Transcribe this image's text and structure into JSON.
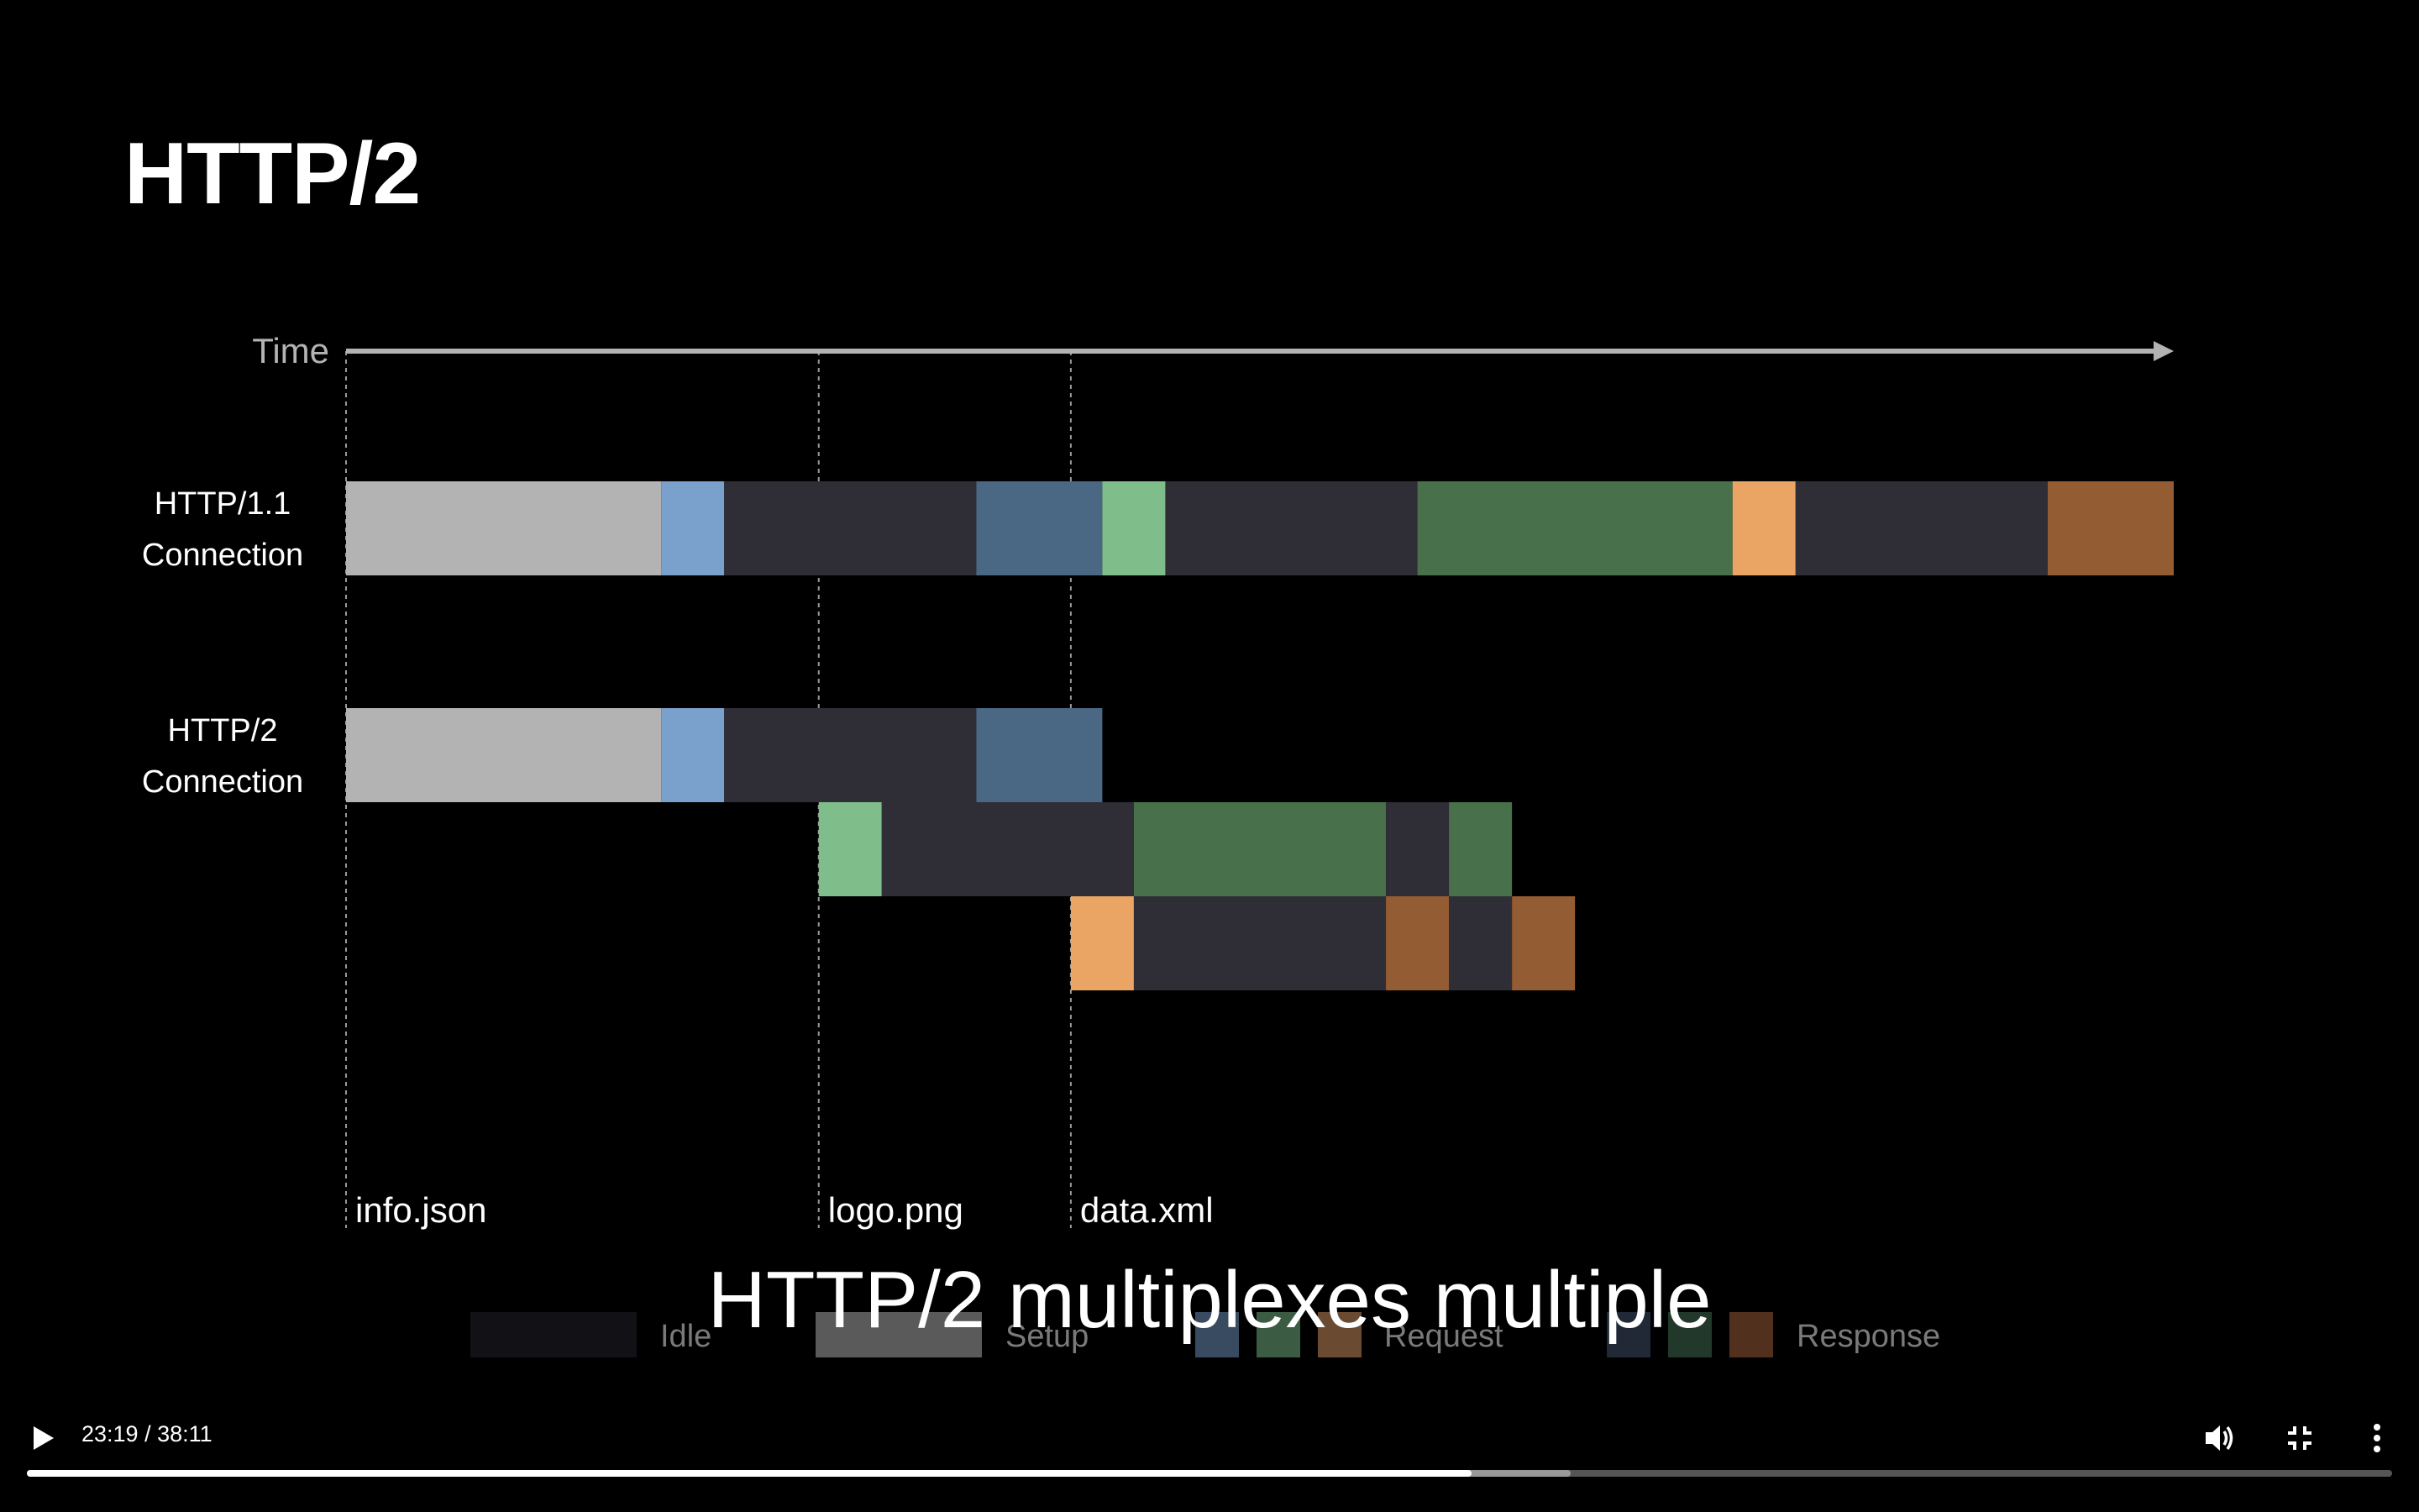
{
  "slide": {
    "title": "HTTP/2",
    "time_label": "Time",
    "rows": [
      {
        "label_line1": "HTTP/1.1",
        "label_line2": "Connection"
      },
      {
        "label_line1": "HTTP/2",
        "label_line2": "Connection"
      }
    ],
    "markers": [
      {
        "name": "info.json",
        "time": 0
      },
      {
        "name": "logo.png",
        "time": 7.5
      },
      {
        "name": "data.xml",
        "time": 11.5
      }
    ],
    "time_axis_max": 29,
    "segments": {
      "http11": [
        {
          "start": 0,
          "end": 5,
          "kind": "setup"
        },
        {
          "start": 5,
          "end": 6,
          "kind": "request-blue"
        },
        {
          "start": 6,
          "end": 10,
          "kind": "idle"
        },
        {
          "start": 10,
          "end": 12,
          "kind": "response-blue"
        },
        {
          "start": 12,
          "end": 13,
          "kind": "request-green"
        },
        {
          "start": 13,
          "end": 17,
          "kind": "idle"
        },
        {
          "start": 17,
          "end": 22,
          "kind": "response-green"
        },
        {
          "start": 22,
          "end": 23,
          "kind": "request-orange"
        },
        {
          "start": 23,
          "end": 27,
          "kind": "idle"
        },
        {
          "start": 27,
          "end": 29,
          "kind": "response-orange"
        }
      ],
      "http2_stream1": [
        {
          "start": 0,
          "end": 5,
          "kind": "setup"
        },
        {
          "start": 5,
          "end": 6,
          "kind": "request-blue"
        },
        {
          "start": 6,
          "end": 10,
          "kind": "idle"
        },
        {
          "start": 10,
          "end": 12,
          "kind": "response-blue"
        }
      ],
      "http2_stream2": [
        {
          "start": 7.5,
          "end": 8.5,
          "kind": "request-green"
        },
        {
          "start": 8.5,
          "end": 12.5,
          "kind": "idle"
        },
        {
          "start": 12.5,
          "end": 16.5,
          "kind": "response-green"
        },
        {
          "start": 16.5,
          "end": 17.5,
          "kind": "idle"
        },
        {
          "start": 17.5,
          "end": 18.5,
          "kind": "response-green"
        }
      ],
      "http2_stream3": [
        {
          "start": 11.5,
          "end": 12.5,
          "kind": "request-orange"
        },
        {
          "start": 12.5,
          "end": 16.5,
          "kind": "idle"
        },
        {
          "start": 16.5,
          "end": 17.5,
          "kind": "response-orange"
        },
        {
          "start": 17.5,
          "end": 18.5,
          "kind": "idle"
        },
        {
          "start": 18.5,
          "end": 19.5,
          "kind": "response-orange"
        }
      ]
    },
    "colors": {
      "setup": "#b3b3b3",
      "idle": "#2f2e37",
      "request-blue": "#7aa0cc",
      "response-blue": "#4a6783",
      "request-green": "#7fbd8b",
      "response-green": "#47704b",
      "request-orange": "#eaa564",
      "response-orange": "#945c33",
      "axis": "#b3b3b3"
    },
    "legend": {
      "idle": "Idle",
      "setup": "Setup",
      "request": "Request",
      "response": "Response",
      "colors": {
        "idle": "#121216",
        "setup": "#5a5a5a",
        "request": [
          "#394b61",
          "#3c5b43",
          "#6a4a30"
        ],
        "response": [
          "#212937",
          "#22382a",
          "#51311e"
        ],
        "text": "#7a7a7a"
      }
    }
  },
  "caption": "HTTP/2 multiplexes multiple",
  "player": {
    "time_display": "23:19 / 38:11",
    "progress_fraction": 0.6108,
    "buffered_fraction": 0.6527,
    "play_icon": "play-icon",
    "volume_icon": "volume-icon",
    "exit_fullscreen_icon": "exit-fullscreen-icon",
    "more_icon": "more-vertical-icon"
  }
}
